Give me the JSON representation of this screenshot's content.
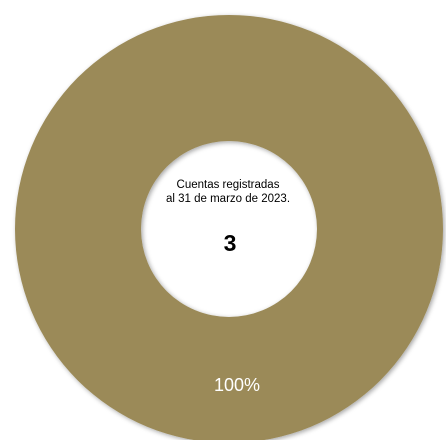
{
  "chart_data": {
    "type": "pie",
    "variant": "donut",
    "slices": [
      {
        "label": "",
        "value": 100,
        "value_label": "100%",
        "color": "#9b8a58"
      }
    ],
    "center_text": {
      "caption_line1": "Cuentas registradas",
      "caption_line2": "al 31 de marzo de 2023.",
      "total": "3"
    },
    "legend": "none"
  }
}
